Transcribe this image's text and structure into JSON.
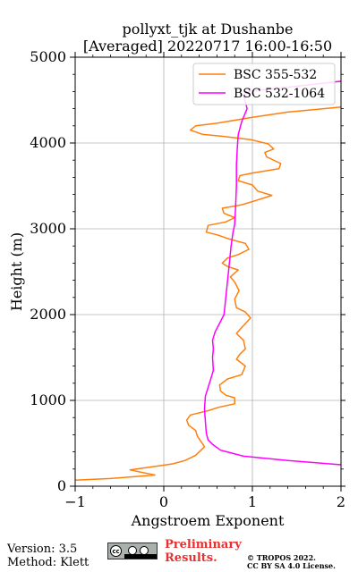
{
  "chart_data": {
    "type": "line",
    "title": "pollyxt_tjk at Dushanbe",
    "subtitle": "[Averaged] 20220717 16:00-16:50",
    "xlabel": "Angstroem Exponent",
    "ylabel": "Height (m)",
    "xlim": [
      -1,
      2
    ],
    "ylim": [
      0,
      5000
    ],
    "xticks": [
      "−1",
      "0",
      "1",
      "2"
    ],
    "yticks": [
      "0",
      "1000",
      "2000",
      "3000",
      "4000",
      "5000"
    ],
    "xtick_values": [
      -1,
      0,
      1,
      2
    ],
    "ytick_values": [
      0,
      1000,
      2000,
      3000,
      4000,
      5000
    ],
    "grid": true,
    "legend_position": "top-right",
    "series": [
      {
        "name": "BSC 355-532",
        "color": "#ff7f0e",
        "points": [
          [
            -1.0,
            70
          ],
          [
            -0.6,
            90
          ],
          [
            -0.1,
            130
          ],
          [
            -0.38,
            190
          ],
          [
            -0.1,
            230
          ],
          [
            0.1,
            260
          ],
          [
            0.24,
            300
          ],
          [
            0.36,
            360
          ],
          [
            0.46,
            460
          ],
          [
            0.42,
            520
          ],
          [
            0.38,
            580
          ],
          [
            0.36,
            650
          ],
          [
            0.28,
            710
          ],
          [
            0.26,
            770
          ],
          [
            0.3,
            830
          ],
          [
            0.5,
            880
          ],
          [
            0.62,
            920
          ],
          [
            0.8,
            960
          ],
          [
            0.8,
            1030
          ],
          [
            0.7,
            1060
          ],
          [
            0.64,
            1110
          ],
          [
            0.63,
            1180
          ],
          [
            0.72,
            1250
          ],
          [
            0.88,
            1300
          ],
          [
            0.92,
            1400
          ],
          [
            0.82,
            1480
          ],
          [
            0.86,
            1540
          ],
          [
            0.92,
            1600
          ],
          [
            0.9,
            1700
          ],
          [
            0.82,
            1780
          ],
          [
            0.88,
            1850
          ],
          [
            0.98,
            1960
          ],
          [
            0.92,
            2030
          ],
          [
            0.82,
            2080
          ],
          [
            0.8,
            2180
          ],
          [
            0.85,
            2280
          ],
          [
            0.8,
            2380
          ],
          [
            0.75,
            2440
          ],
          [
            0.84,
            2520
          ],
          [
            0.72,
            2560
          ],
          [
            0.66,
            2600
          ],
          [
            0.72,
            2660
          ],
          [
            0.84,
            2700
          ],
          [
            0.96,
            2760
          ],
          [
            0.92,
            2830
          ],
          [
            0.74,
            2880
          ],
          [
            0.6,
            2930
          ],
          [
            0.48,
            2960
          ],
          [
            0.5,
            3040
          ],
          [
            0.7,
            3080
          ],
          [
            0.8,
            3130
          ],
          [
            0.68,
            3180
          ],
          [
            0.66,
            3240
          ],
          [
            0.88,
            3280
          ],
          [
            1.04,
            3330
          ],
          [
            1.22,
            3390
          ],
          [
            1.06,
            3440
          ],
          [
            1.0,
            3510
          ],
          [
            0.84,
            3560
          ],
          [
            0.86,
            3620
          ],
          [
            1.0,
            3650
          ],
          [
            1.3,
            3700
          ],
          [
            1.32,
            3760
          ],
          [
            1.16,
            3840
          ],
          [
            1.14,
            3890
          ],
          [
            1.24,
            3930
          ],
          [
            1.18,
            3990
          ],
          [
            0.98,
            4040
          ],
          [
            0.64,
            4080
          ],
          [
            0.44,
            4100
          ],
          [
            0.3,
            4150
          ],
          [
            0.36,
            4200
          ],
          [
            0.6,
            4230
          ],
          [
            1.0,
            4300
          ],
          [
            1.4,
            4360
          ],
          [
            1.7,
            4390
          ],
          [
            2.0,
            4420
          ]
        ]
      },
      {
        "name": "BSC 532-1064",
        "color": "#ff00ff",
        "points": [
          [
            2.0,
            250
          ],
          [
            1.4,
            300
          ],
          [
            0.9,
            350
          ],
          [
            0.64,
            420
          ],
          [
            0.56,
            480
          ],
          [
            0.5,
            540
          ],
          [
            0.48,
            620
          ],
          [
            0.47,
            750
          ],
          [
            0.46,
            900
          ],
          [
            0.47,
            1050
          ],
          [
            0.5,
            1150
          ],
          [
            0.53,
            1250
          ],
          [
            0.56,
            1350
          ],
          [
            0.55,
            1500
          ],
          [
            0.56,
            1600
          ],
          [
            0.55,
            1700
          ],
          [
            0.58,
            1800
          ],
          [
            0.63,
            1900
          ],
          [
            0.68,
            2000
          ],
          [
            0.7,
            2200
          ],
          [
            0.72,
            2400
          ],
          [
            0.74,
            2600
          ],
          [
            0.76,
            2800
          ],
          [
            0.78,
            2950
          ],
          [
            0.8,
            3050
          ],
          [
            0.81,
            3250
          ],
          [
            0.82,
            3500
          ],
          [
            0.82,
            3750
          ],
          [
            0.83,
            3950
          ],
          [
            0.84,
            4100
          ],
          [
            0.88,
            4250
          ],
          [
            0.94,
            4400
          ],
          [
            0.9,
            4560
          ],
          [
            0.95,
            4600
          ],
          [
            1.4,
            4650
          ],
          [
            2.0,
            4720
          ]
        ]
      }
    ]
  },
  "footer": {
    "version": "Version: 3.5",
    "method": "Method: Klett",
    "license_logo_text": "cc",
    "preliminary_line1": "Preliminary",
    "preliminary_line2": "Results.",
    "copyright_line1": "© TROPOS 2022.",
    "copyright_line2": "CC BY SA 4.0 License."
  }
}
